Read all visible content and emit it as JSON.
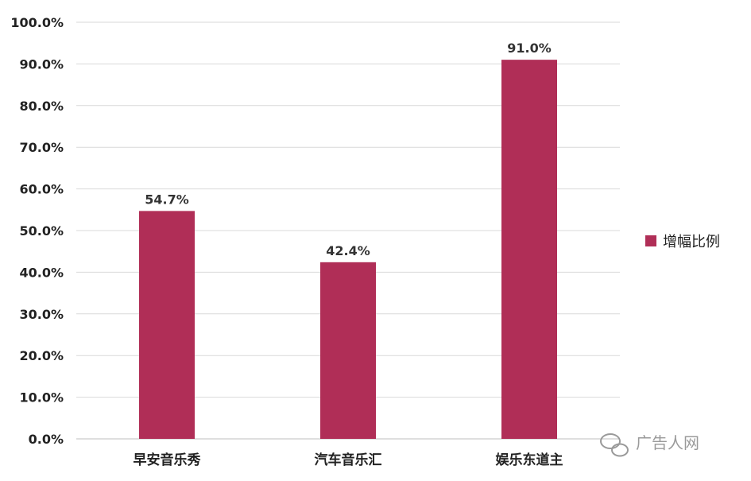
{
  "chart_data": {
    "type": "bar",
    "categories": [
      "早安音乐秀",
      "汽车音乐汇",
      "娱乐东道主"
    ],
    "series": [
      {
        "name": "增幅比例",
        "values": [
          54.7,
          42.4,
          91.0
        ],
        "color": "#b02e57"
      }
    ],
    "data_labels": [
      "54.7%",
      "42.4%",
      "91.0%"
    ],
    "y_ticks": [
      "0.0%",
      "10.0%",
      "20.0%",
      "30.0%",
      "40.0%",
      "50.0%",
      "60.0%",
      "70.0%",
      "80.0%",
      "90.0%",
      "100.0%"
    ],
    "ylim": [
      0,
      100
    ],
    "grid": true,
    "legend_position": "right"
  },
  "watermark": {
    "text": "广告人网",
    "icon": "wechat-icon"
  }
}
